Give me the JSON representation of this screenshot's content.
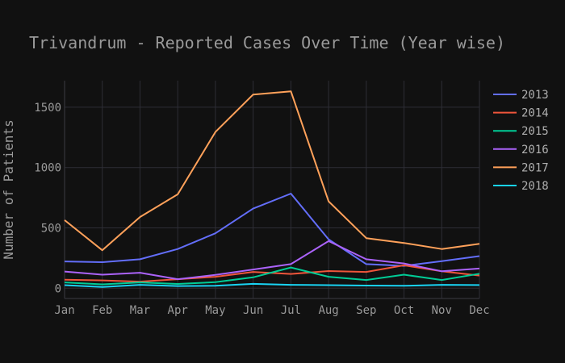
{
  "chart_data": {
    "type": "line",
    "title": "Trivandrum - Reported Cases Over Time (Year wise)",
    "xlabel": "",
    "ylabel": "Number of Patients",
    "categories": [
      "Jan",
      "Feb",
      "Mar",
      "Apr",
      "May",
      "Jun",
      "Jul",
      "Aug",
      "Sep",
      "Oct",
      "Nov",
      "Dec"
    ],
    "ylim": [
      -85,
      1720
    ],
    "yticks": [
      0,
      500,
      1000,
      1500
    ],
    "grid": true,
    "legend_position": "right",
    "series": [
      {
        "name": "2013",
        "color": "#636efa",
        "values": [
          222,
          216,
          240,
          325,
          455,
          660,
          784,
          405,
          200,
          185,
          224,
          266
        ]
      },
      {
        "name": "2014",
        "color": "#ef553b",
        "values": [
          70,
          65,
          55,
          75,
          95,
          135,
          118,
          142,
          135,
          190,
          140,
          105
        ]
      },
      {
        "name": "2015",
        "color": "#00cc96",
        "values": [
          48,
          32,
          48,
          35,
          50,
          90,
          172,
          95,
          68,
          112,
          68,
          120
        ]
      },
      {
        "name": "2016",
        "color": "#ab63fa",
        "values": [
          138,
          112,
          128,
          75,
          110,
          155,
          200,
          390,
          240,
          205,
          140,
          163
        ]
      },
      {
        "name": "2017",
        "color": "#ffa15a",
        "values": [
          564,
          315,
          590,
          778,
          1295,
          1605,
          1632,
          720,
          415,
          375,
          325,
          368
        ]
      },
      {
        "name": "2018",
        "color": "#19d3f3",
        "values": [
          25,
          10,
          28,
          18,
          20,
          36,
          28,
          25,
          22,
          20,
          28,
          26
        ]
      }
    ]
  }
}
